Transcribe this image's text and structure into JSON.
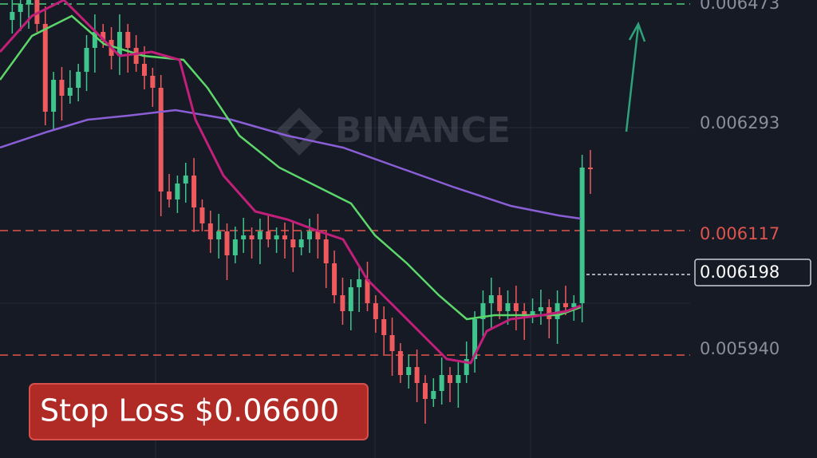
{
  "watermark": "BINANCE",
  "price_labels": [
    "0.006473",
    "0.006293",
    "0.006117",
    "0.005940"
  ],
  "current_price": "0.006198",
  "stop_loss": "Stop Loss $0.06600"
}
